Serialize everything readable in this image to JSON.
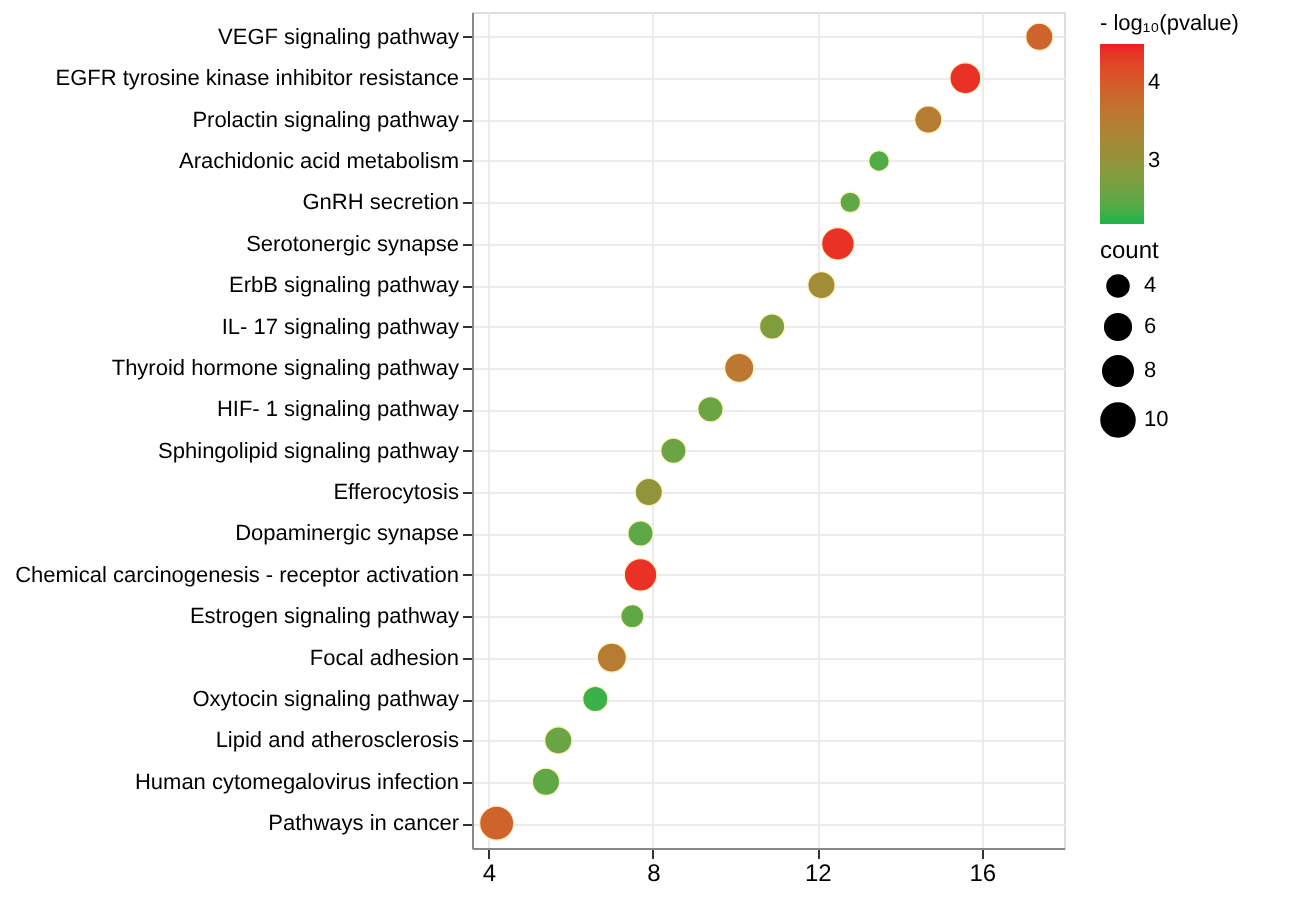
{
  "chart_data": {
    "type": "bubble",
    "orientation": "horizontal",
    "clabel": "- log₁₀(pvalue)",
    "legend_title": "count",
    "categories": [
      "VEGF signaling pathway",
      "EGFR tyrosine kinase inhibitor resistance",
      "Prolactin signaling pathway",
      "Arachidonic acid metabolism",
      "GnRH secretion",
      "Serotonergic synapse",
      "ErbB signaling pathway",
      "IL- 17 signaling pathway",
      "Thyroid hormone signaling pathway",
      "HIF- 1 signaling pathway",
      "Sphingolipid signaling pathway",
      "Efferocytosis",
      "Dopaminergic synapse",
      "Chemical carcinogenesis -  receptor activation",
      "Estrogen signaling pathway",
      "Focal adhesion",
      "Oxytocin signaling pathway",
      "Lipid and atherosclerosis",
      "Human cytomegalovirus infection",
      "Pathways in cancer"
    ],
    "values": [
      17.4,
      15.6,
      14.7,
      13.5,
      12.8,
      12.5,
      12.1,
      10.9,
      10.1,
      9.4,
      8.5,
      7.9,
      7.7,
      7.7,
      7.5,
      7.0,
      6.6,
      5.7,
      5.4,
      4.2
    ],
    "sizes": [
      7,
      9,
      7,
      4,
      4,
      10,
      7,
      6,
      8,
      6,
      6,
      7,
      6,
      10,
      5,
      8,
      6,
      7,
      7,
      11
    ],
    "cvalues": [
      3.9,
      4.4,
      3.5,
      2.4,
      2.5,
      4.4,
      3.2,
      2.8,
      3.6,
      2.6,
      2.6,
      3.0,
      2.5,
      4.4,
      2.5,
      3.5,
      2.3,
      2.6,
      2.5,
      3.9
    ],
    "size_legend": [
      4,
      6,
      8,
      10
    ],
    "clim": [
      2.2,
      4.5
    ],
    "cticks": [
      3,
      4
    ],
    "xlim": [
      3.6,
      18.0
    ],
    "xticks": [
      4,
      8,
      12,
      16
    ],
    "grid": true
  }
}
